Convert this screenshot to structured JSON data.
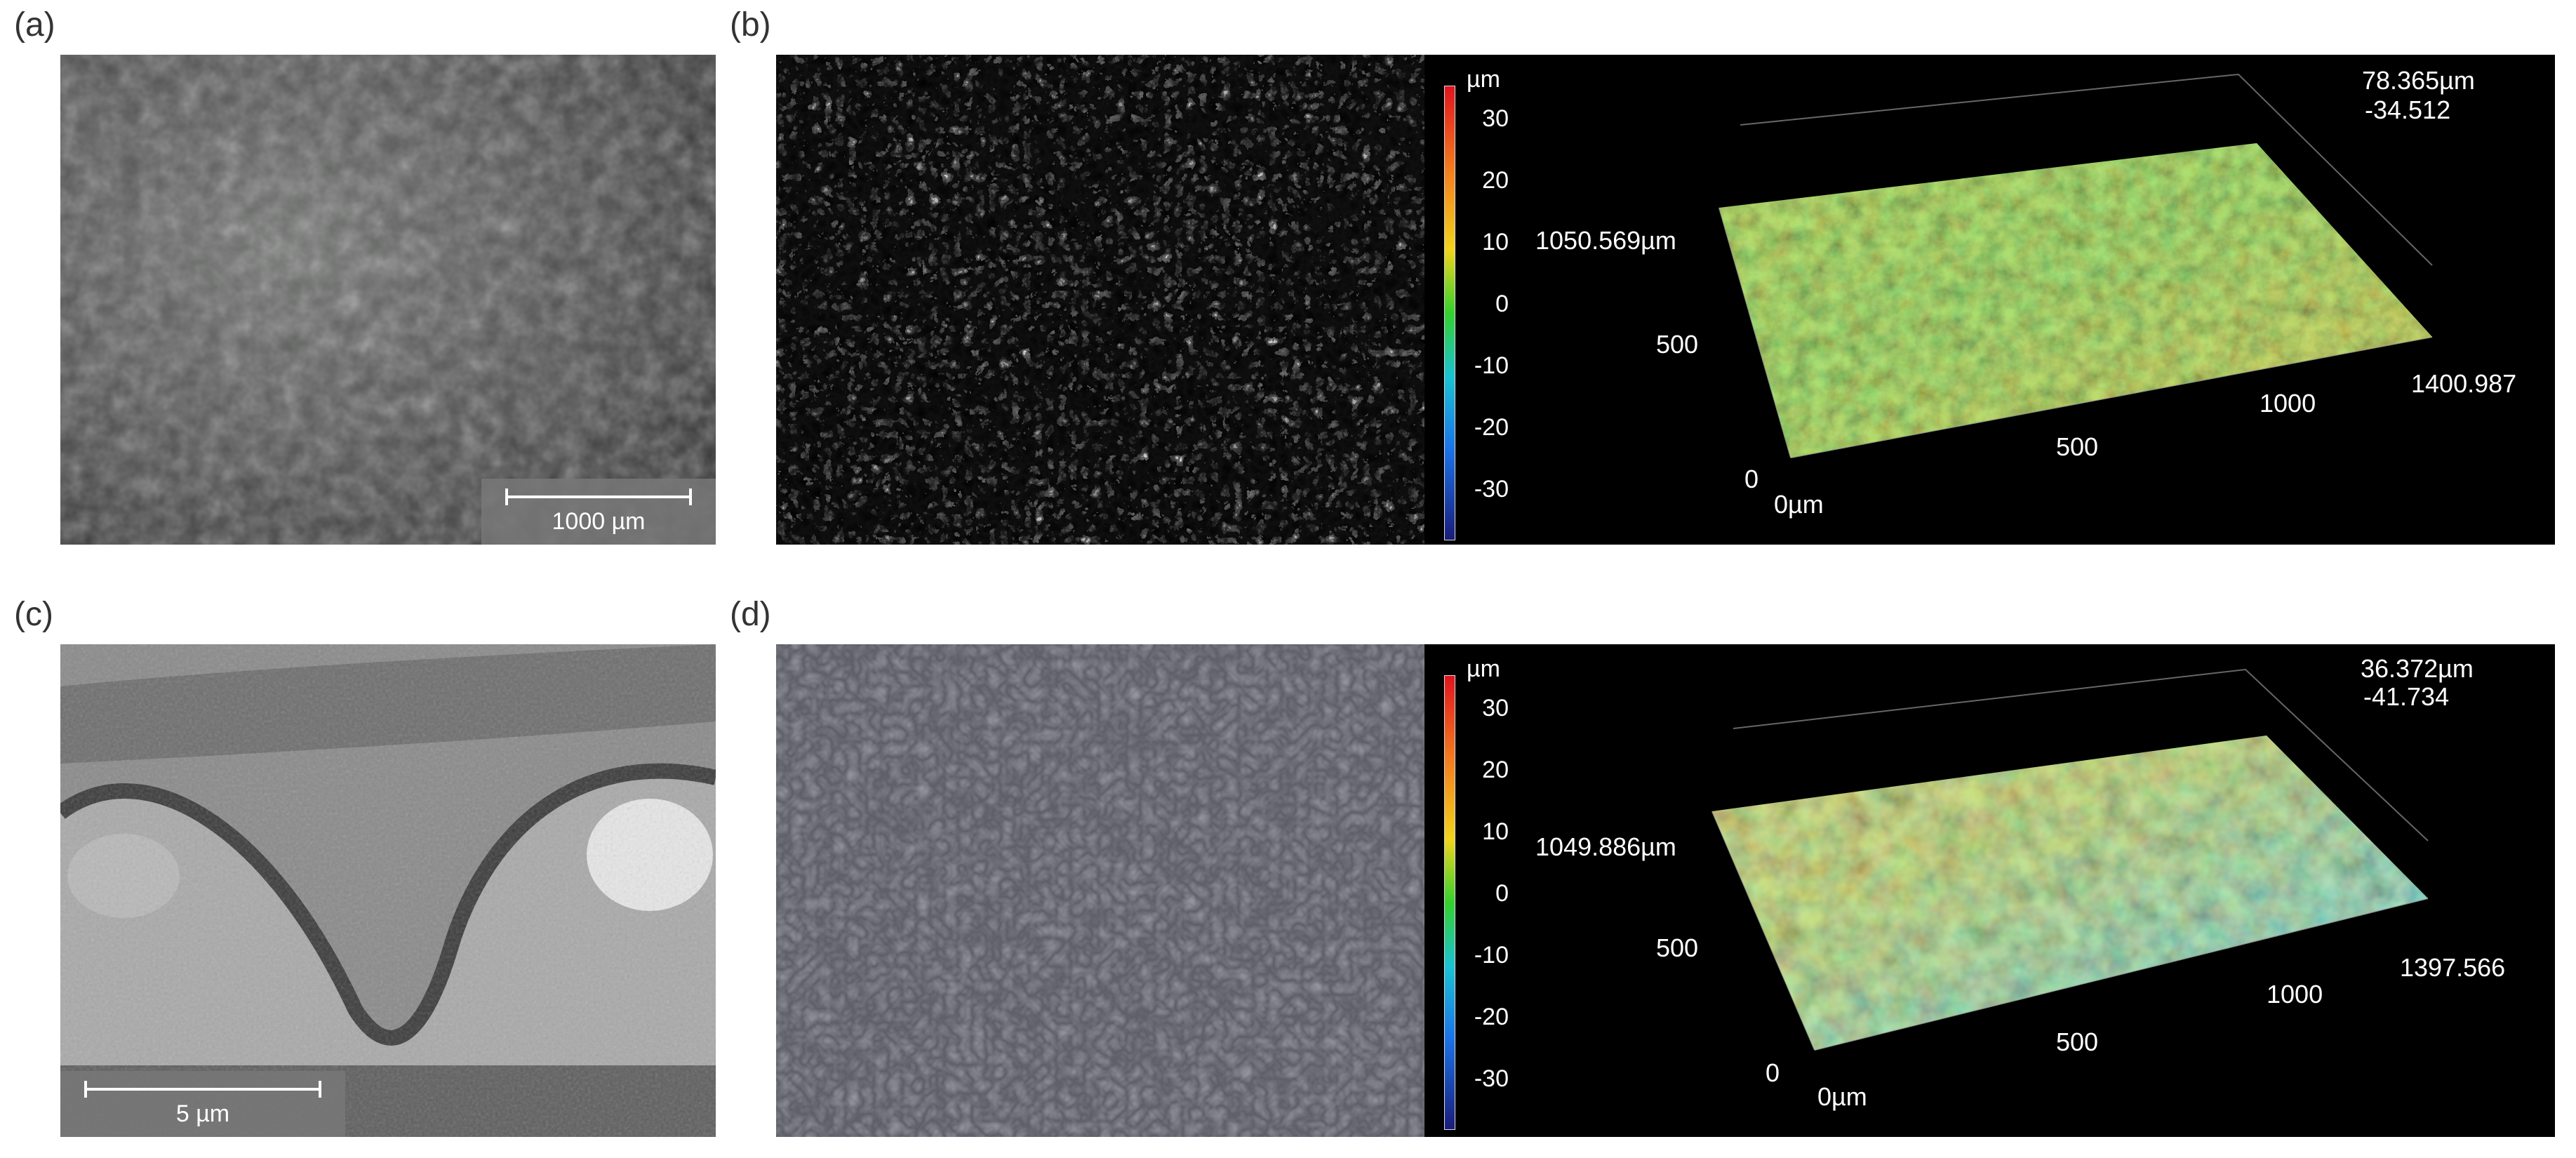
{
  "panels": {
    "a": {
      "label": "(a)",
      "scalebar": "1000 µm"
    },
    "b": {
      "label": "(b)",
      "colorbar": {
        "unit": "µm",
        "ticks": [
          "30",
          "20",
          "10",
          "0",
          "-10",
          "-20",
          "-30"
        ]
      },
      "axes": {
        "z_max": "78.365µm",
        "z_min": "-34.512",
        "y_extent": "1050.569µm",
        "y_mid": "500",
        "origin_y": "0",
        "origin_x": "0µm",
        "x_mid": "500",
        "x_1000": "1000",
        "x_extent": "1400.987"
      }
    },
    "c": {
      "label": "(c)",
      "scalebar": "5 µm"
    },
    "d": {
      "label": "(d)",
      "colorbar": {
        "unit": "µm",
        "ticks": [
          "30",
          "20",
          "10",
          "0",
          "-10",
          "-20",
          "-30"
        ]
      },
      "axes": {
        "z_max": "36.372µm",
        "z_min": "-41.734",
        "y_extent": "1049.886µm",
        "y_mid": "500",
        "origin_y": "0",
        "origin_x": "0µm",
        "x_mid": "500",
        "x_1000": "1000",
        "x_extent": "1397.566"
      }
    }
  }
}
